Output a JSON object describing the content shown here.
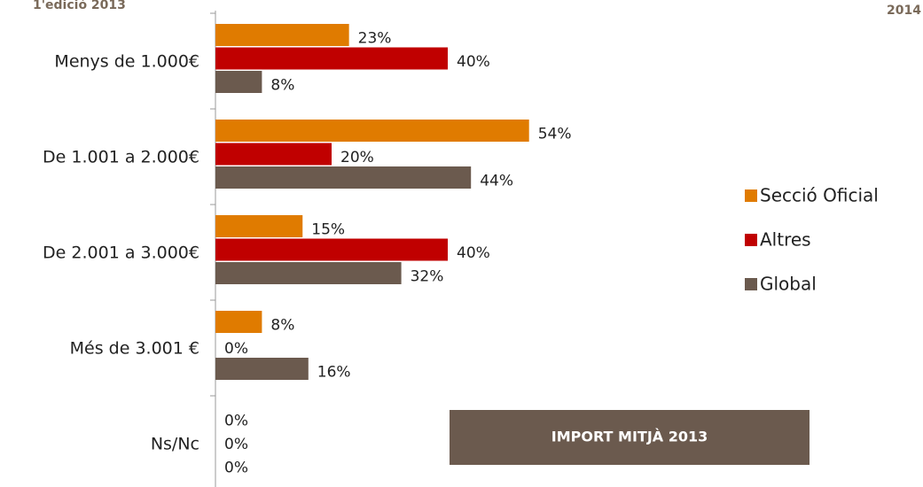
{
  "chart_data": {
    "type": "bar",
    "orientation": "horizontal",
    "categories": [
      "Menys de 1.000€",
      "De 1.001 a 2.000€",
      "De 2.001 a 3.000€",
      "Més de 3.001 €",
      "Ns/Nc"
    ],
    "series": [
      {
        "name": "Secció Oficial",
        "color": "#e07b00",
        "values": [
          23,
          54,
          15,
          8,
          0
        ],
        "value_labels": [
          "23%",
          "54%",
          "15%",
          "8%",
          "0%"
        ]
      },
      {
        "name": "Altres",
        "color": "#c00000",
        "values": [
          40,
          20,
          40,
          0,
          0
        ],
        "value_labels": [
          "40%",
          "20%",
          "40%",
          "0%",
          "0%"
        ]
      },
      {
        "name": "Global",
        "color": "#6b5a4e",
        "values": [
          8,
          44,
          32,
          16,
          0
        ],
        "value_labels": [
          "8%",
          "44%",
          "32%",
          "16%",
          "0%"
        ]
      }
    ],
    "xlim": [
      0,
      100
    ],
    "legend": "right",
    "annotations": [
      "1'edició 2013",
      "2014",
      "IMPORT MITJÀ 2013"
    ]
  }
}
